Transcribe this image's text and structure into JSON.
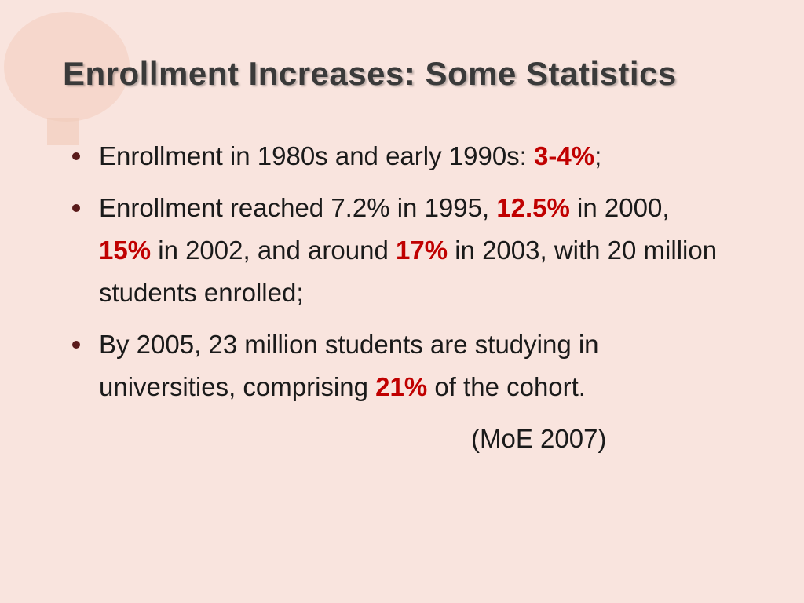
{
  "title": "Enrollment Increases: Some Statistics",
  "bullets": [
    {
      "runs": [
        {
          "text": "Enrollment in 1980s and early 1990s: "
        },
        {
          "text": "3-4%",
          "color": "#c00000"
        },
        {
          "text": ";"
        }
      ]
    },
    {
      "runs": [
        {
          "text": "Enrollment reached 7.2% in 1995, "
        },
        {
          "text": "12.5%",
          "color": "#c00000"
        },
        {
          "text": " in 2000, "
        },
        {
          "text": "15%",
          "color": "#c00000"
        },
        {
          "text": " in 2002, and around "
        },
        {
          "text": "17%",
          "color": "#c00000"
        },
        {
          "text": " in 2003, with 20 million students enrolled;"
        }
      ]
    },
    {
      "runs": [
        {
          "text": "By 2005, 23 million students are studying in universities, comprising "
        },
        {
          "text": "21%",
          "color": "#c00000"
        },
        {
          "text": " of the cohort."
        }
      ]
    }
  ],
  "citation": "(MoE 2007)"
}
